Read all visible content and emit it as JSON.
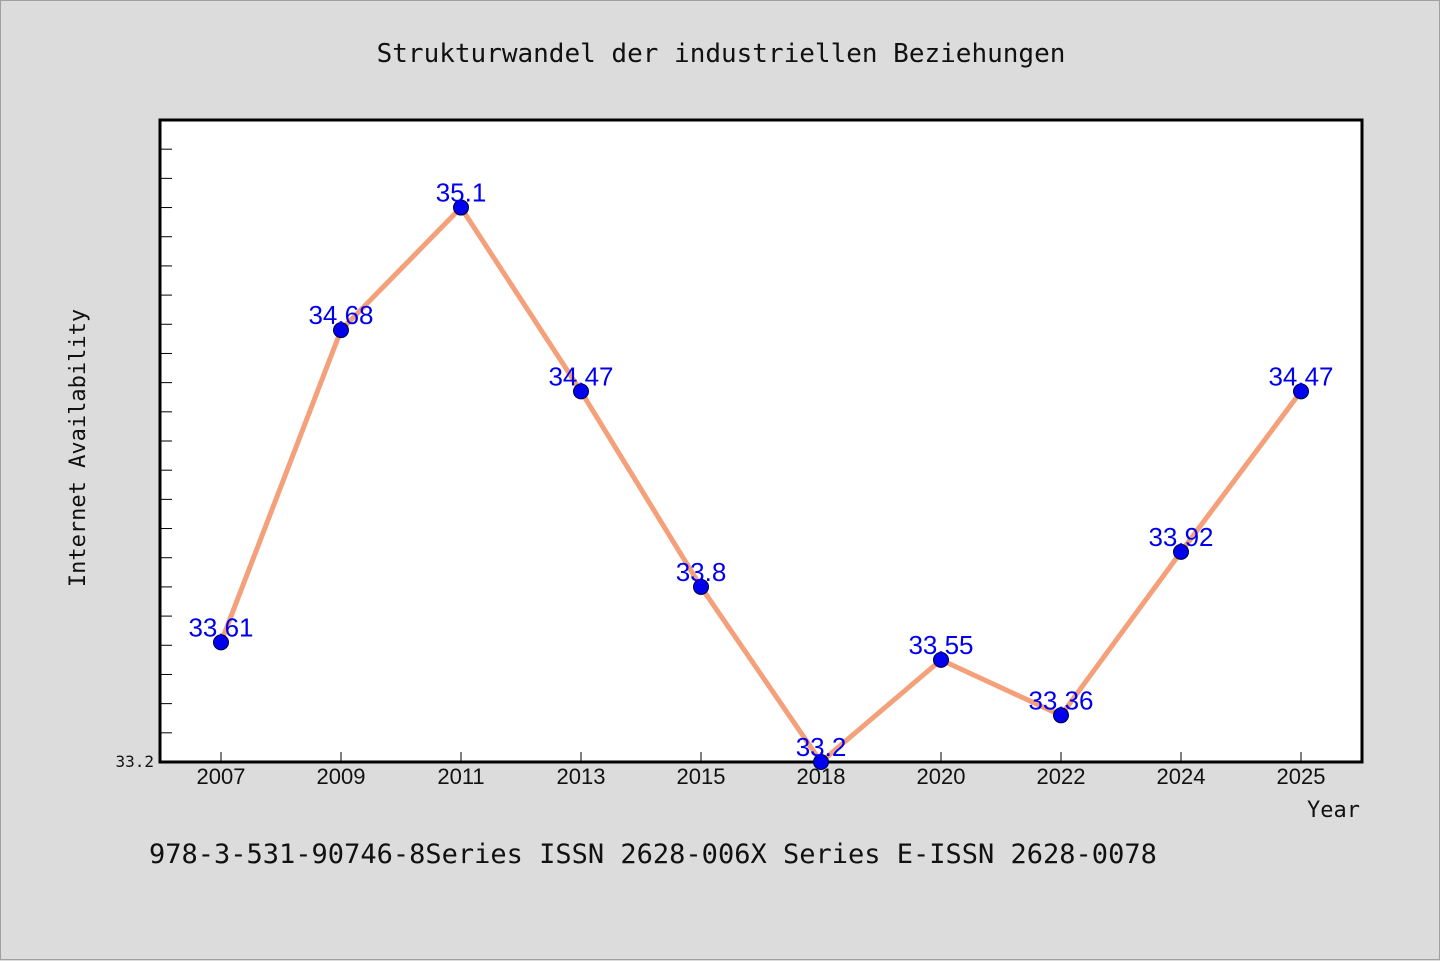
{
  "chart_data": {
    "type": "line",
    "title": "Strukturwandel der industriellen Beziehungen",
    "xlabel": "Year",
    "ylabel": "Internet Availability",
    "categories": [
      "2007",
      "2009",
      "2011",
      "2013",
      "2015",
      "2018",
      "2020",
      "2022",
      "2024",
      "2025"
    ],
    "series": [
      {
        "values": [
          33.61,
          34.68,
          35.1,
          34.47,
          33.8,
          33.2,
          33.55,
          33.36,
          33.92,
          34.47
        ],
        "labels": [
          "33.61",
          "34.68",
          "35.1",
          "34.47",
          "33.8",
          "33.2",
          "33.55",
          "33.36",
          "33.92",
          "34.47"
        ]
      }
    ],
    "ylim": [
      33.2,
      35.4
    ],
    "ytick_label": "33.2",
    "grid": false,
    "line_color": "#f4a07a",
    "marker_color": "#0000ee",
    "label_color": "#0000ee"
  },
  "footer": {
    "text": "978-3-531-90746-8Series ISSN 2628-006X Series E-ISSN 2628-0078"
  }
}
